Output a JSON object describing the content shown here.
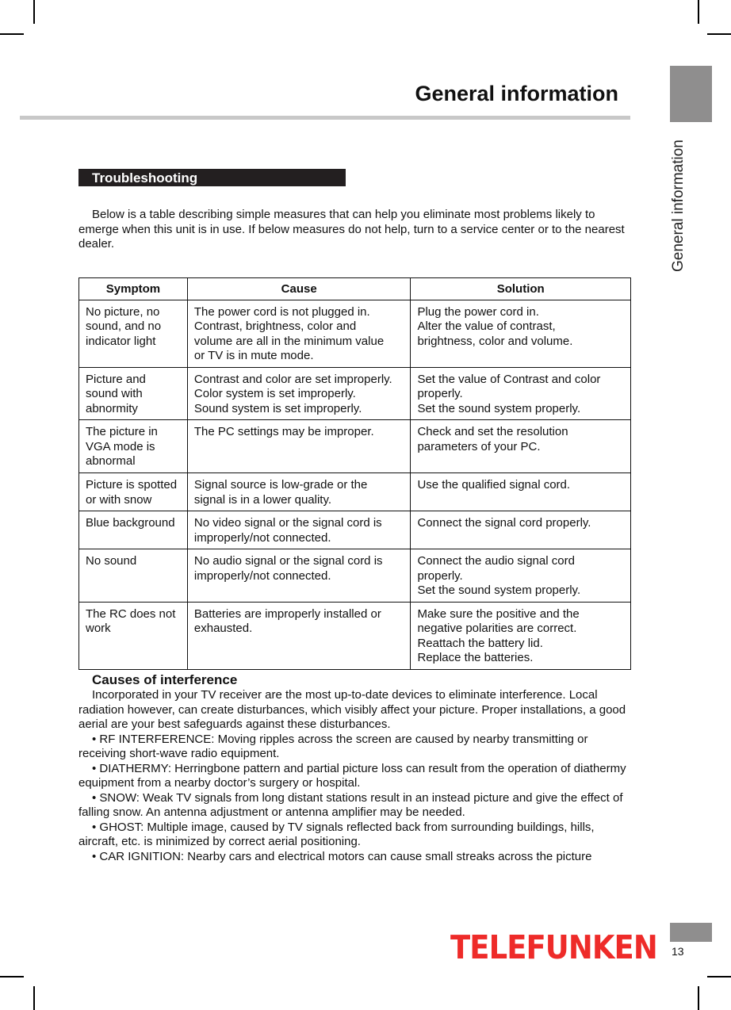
{
  "header": {
    "title": "General information",
    "side_tab_label": "General information"
  },
  "section": {
    "title": "Troubleshooting"
  },
  "intro": "Below is a table describing simple measures that can help you eliminate most problems likely to emerge when this unit is in use. If below measures do not help, turn to a service center or to the nearest dealer.",
  "table": {
    "headers": [
      "Symptom",
      "Cause",
      "Solution"
    ],
    "rows": [
      [
        "No picture, no\nsound, and no\nindicator light",
        "The power cord is not plugged in.\nContrast, brightness, color and\nvolume are all in the minimum value\nor TV is in mute mode.",
        "Plug the power cord in.\nAlter the value of contrast,\nbrightness, color and volume."
      ],
      [
        "Picture and\nsound with\nabnormity",
        "Contrast and color are set improperly.\nColor system is set improperly.\nSound system is set improperly.",
        "Set the value of Contrast and color\nproperly.\nSet the sound system properly."
      ],
      [
        "The picture in\nVGA mode is\nabnormal",
        "The PC settings may be improper.",
        "Check and set the resolution\nparameters of your PC."
      ],
      [
        "Picture is spotted\nor with snow",
        "Signal source is low-grade or the\nsignal is in a lower quality.",
        "Use the qualified signal cord."
      ],
      [
        "Blue background",
        "No video signal or the signal cord is\nimproperly/not connected.",
        "Connect the signal cord properly."
      ],
      [
        "No sound",
        "No audio signal or the signal cord is\nimproperly/not connected.",
        "Connect the audio signal cord\nproperly.\nSet the sound system properly."
      ],
      [
        "The RC does not\nwork",
        "Batteries are improperly installed or\nexhausted.",
        "Make sure the positive and the\nnegative polarities are correct.\nReattach the battery lid.\nReplace the batteries."
      ]
    ]
  },
  "interference": {
    "title": "Causes of interference",
    "paragraphs": [
      "Incorporated in your TV receiver are the most up-to-date devices to eliminate interference. Local radiation however, can create disturbances, which visibly affect your picture. Proper installations, a good aerial are your best safeguards against these disturbances.",
      "• RF INTERFERENCE: Moving ripples across the screen are caused by nearby transmitting or receiving short-wave radio equipment.",
      "• DIATHERMY: Herringbone pattern and partial picture loss can result from the operation of diathermy equipment from a nearby doctor’s surgery or hospital.",
      "• SNOW: Weak TV signals from long distant stations result in an instead picture and give the effect of falling snow. An antenna adjustment or antenna amplifier may be needed.",
      "• GHOST: Multiple image, caused by TV signals reflected back from surrounding buildings, hills, aircraft, etc. is minimized by correct aerial positioning.",
      "• CAR IGNITION: Nearby cars and electrical motors can cause small streaks across the picture"
    ]
  },
  "footer": {
    "brand": "TELEFUNKEN",
    "brand_color": "#ee2b29",
    "page_number": "13"
  }
}
